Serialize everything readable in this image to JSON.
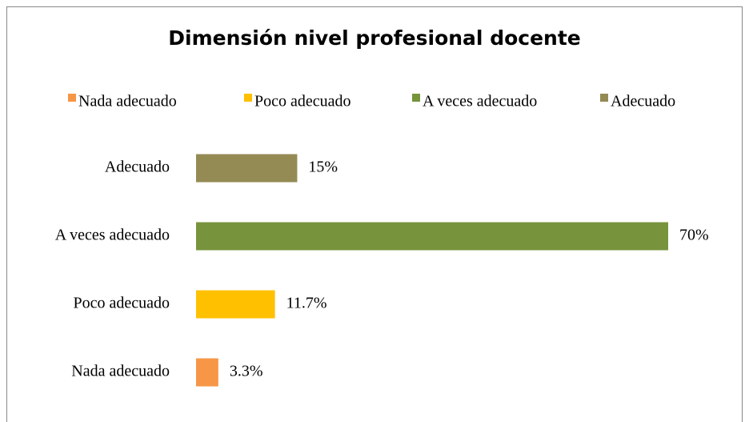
{
  "chart_data": {
    "type": "barh",
    "title": "Dimensión nivel profesional docente",
    "categories": [
      "Nada adecuado",
      "Poco adecuado",
      "A veces adecuado",
      "Adecuado"
    ],
    "values": [
      3.3,
      11.7,
      70,
      15
    ],
    "value_labels": [
      "3.3%",
      "11.7%",
      "70%",
      "15%"
    ],
    "colors": [
      "#f79646",
      "#ffc000",
      "#77933c",
      "#948a54"
    ],
    "legend": "top"
  }
}
